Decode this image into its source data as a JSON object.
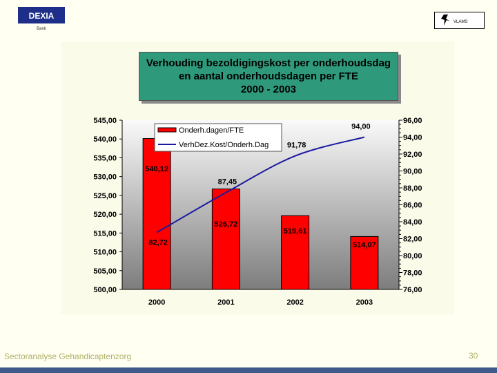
{
  "slide": {
    "logo_left_text": "DEXIA",
    "logo_left_sub": "Bank",
    "logo_right_text": "VLAMS",
    "footer": "Sectoranalyse Gehandicaptenzorg",
    "page_number": "30"
  },
  "chart_data": {
    "type": "bar",
    "title_lines": [
      "Verhouding bezoldigingskost per onderhoudsdag",
      "en aantal onderhoudsdagen per FTE",
      "2000 - 2003"
    ],
    "categories": [
      "2000",
      "2001",
      "2002",
      "2003"
    ],
    "series": [
      {
        "name": "Onderh.dagen/FTE",
        "type": "bar",
        "axis": "left",
        "color": "#ff0000",
        "values": [
          540.12,
          526.72,
          519.61,
          514.07
        ],
        "labels": [
          "540,12",
          "526,72",
          "519,61",
          "514,07"
        ]
      },
      {
        "name": "VerhDez.Kost/Onderh.Dag",
        "type": "line",
        "axis": "right",
        "color": "#1a1aa0",
        "values": [
          82.72,
          87.45,
          91.78,
          94.0
        ],
        "labels": [
          "82,72",
          "87,45",
          "91,78",
          "94,00"
        ]
      }
    ],
    "left_axis": {
      "min": 500,
      "max": 545,
      "step": 5,
      "tick_labels": [
        "500,00",
        "505,00",
        "510,00",
        "515,00",
        "520,00",
        "525,00",
        "530,00",
        "535,00",
        "540,00",
        "545,00"
      ]
    },
    "right_axis": {
      "min": 76,
      "max": 96,
      "step": 2,
      "tick_labels": [
        "76,00",
        "78,00",
        "80,00",
        "82,00",
        "84,00",
        "86,00",
        "88,00",
        "90,00",
        "92,00",
        "94,00",
        "96,00"
      ]
    },
    "legend": "top-left",
    "grid": false
  }
}
